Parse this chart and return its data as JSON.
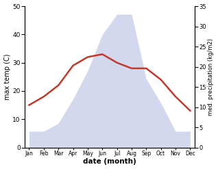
{
  "months": [
    "Jan",
    "Feb",
    "Mar",
    "Apr",
    "May",
    "Jun",
    "Jul",
    "Aug",
    "Sep",
    "Oct",
    "Nov",
    "Dec"
  ],
  "temperature": [
    15,
    18,
    22,
    29,
    32,
    33,
    30,
    28,
    28,
    24,
    18,
    13
  ],
  "precipitation": [
    4,
    4,
    6,
    12,
    19,
    28,
    33,
    33,
    17,
    11,
    4,
    4
  ],
  "temp_color": "#c0392b",
  "precip_color": "#b0b8e0",
  "precip_fill_alpha": 0.55,
  "temp_ylim": [
    0,
    50
  ],
  "precip_ylim": [
    0,
    35
  ],
  "temp_yticks": [
    0,
    10,
    20,
    30,
    40,
    50
  ],
  "precip_yticks": [
    0,
    5,
    10,
    15,
    20,
    25,
    30,
    35
  ],
  "xlabel": "date (month)",
  "ylabel_left": "max temp (C)",
  "ylabel_right": "med. precipitation (kg/m2)",
  "linewidth": 1.8,
  "background_color": "#ffffff"
}
